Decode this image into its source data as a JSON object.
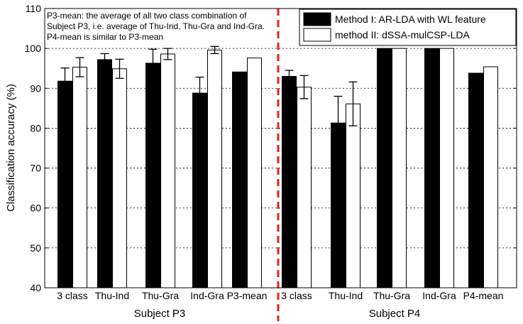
{
  "chart_data": {
    "type": "bar",
    "ylabel": "Classification accuracy (%)",
    "ylim": [
      40,
      110
    ],
    "yticks": [
      40,
      50,
      60,
      70,
      80,
      90,
      100,
      110
    ],
    "grid": "horizontal dashed",
    "legend_placement": "top-right",
    "categories": [
      "3 class",
      "Thu-Ind",
      "Thu-Gra",
      "Ind-Gra",
      "P3-mean",
      "3 class",
      "Thu-Ind",
      "Thu-Gra",
      "Ind-Gra",
      "P4-mean"
    ],
    "groups": [
      {
        "label": "Subject P3"
      },
      {
        "label": "Subject P4"
      }
    ],
    "series": [
      {
        "name": "Method I: AR-LDA with WL feature",
        "color": "#000000",
        "values": [
          91.8,
          97.2,
          96.3,
          88.8,
          94.1,
          93.0,
          81.3,
          100,
          100,
          93.8
        ],
        "errors": [
          3.3,
          1.5,
          3.5,
          4.0,
          0,
          1.5,
          6.7,
          0,
          0,
          0
        ]
      },
      {
        "name": "method II: dSSA-mulCSP-LDA",
        "color": "#ffffff",
        "values": [
          95.3,
          94.9,
          98.6,
          99.6,
          97.6,
          90.3,
          86.1,
          100,
          100,
          95.4
        ],
        "errors": [
          2.4,
          2.4,
          1.4,
          0.9,
          0,
          2.9,
          5.5,
          0,
          0,
          0
        ]
      }
    ],
    "annotation": "P3-mean: the average of all two class combination of Subject P3, i.e. average of Thu-Ind, Thu-Gra and Ind-Gra. P4-mean is similar to P3-mean",
    "annotation_lines": [
      "P3-mean: the average of all two class combination of",
      "Subject P3, i.e. average of Thu-Ind, Thu-Gra and Ind-Gra.",
      "P4-mean is similar to P3-mean"
    ],
    "divider_color": "#e8201f"
  }
}
